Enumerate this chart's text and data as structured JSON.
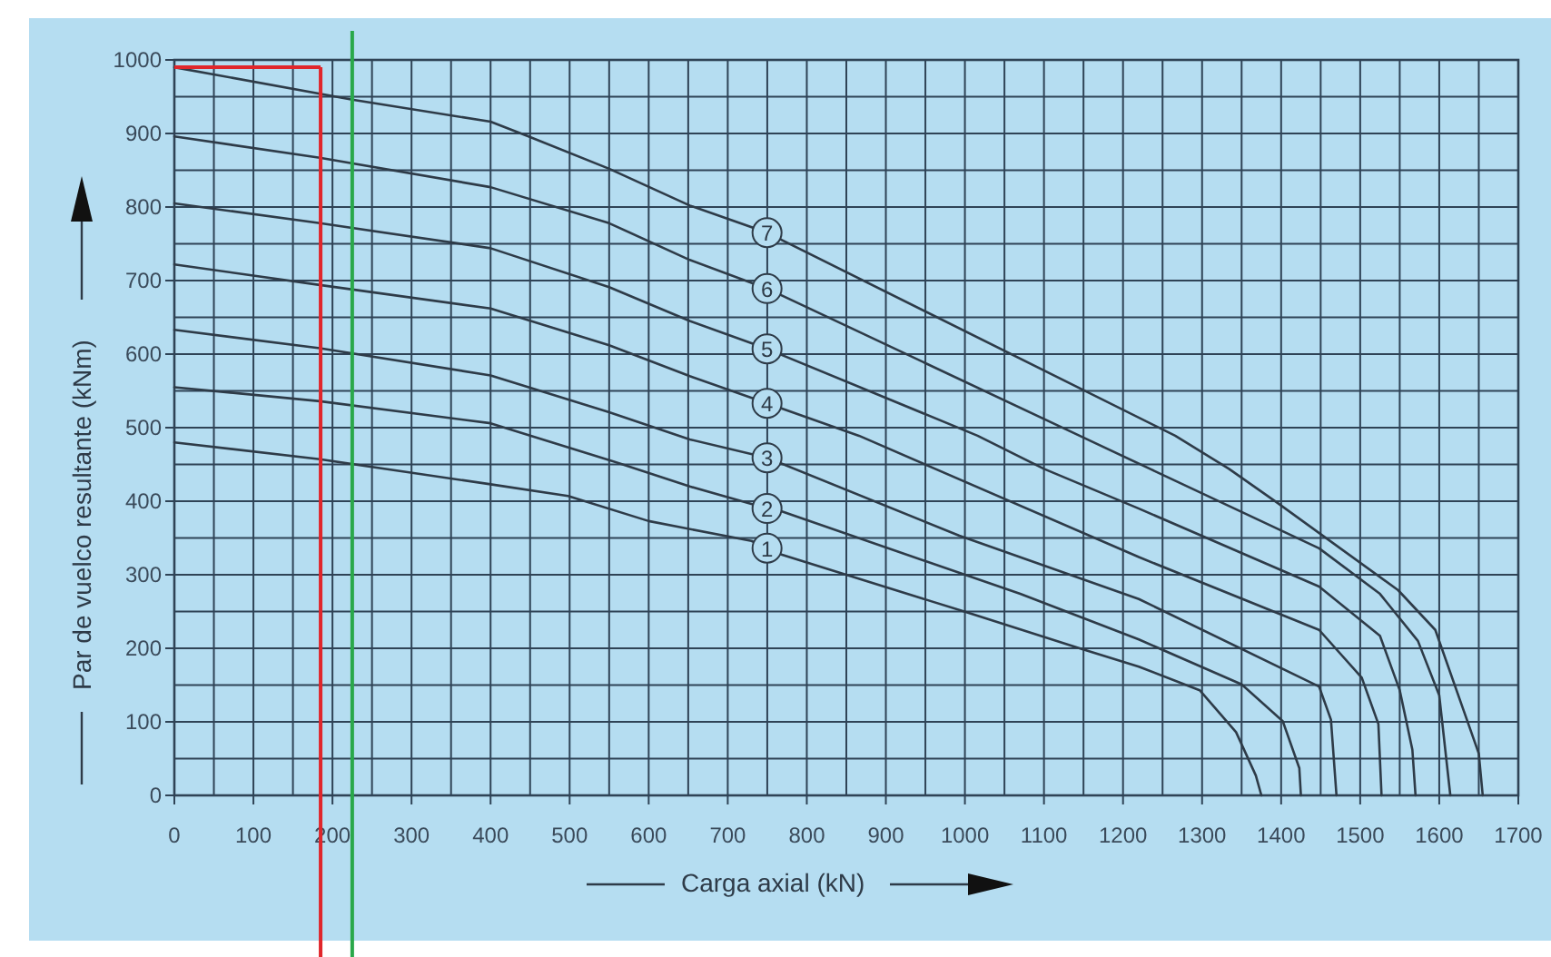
{
  "chart_data": {
    "type": "line",
    "xlabel": "Carga axial (kN)",
    "ylabel": "Par de vuelco resultante (kNm)",
    "xlim": [
      0,
      1700
    ],
    "ylim": [
      0,
      1000
    ],
    "xticks": [
      0,
      {
        "value": 50,
        "label": null
      },
      100,
      {
        "value": 150,
        "label": null
      },
      200,
      {
        "value": 250,
        "label": null
      },
      300,
      {
        "value": 350,
        "label": null
      },
      400,
      {
        "value": 450,
        "label": null
      },
      500,
      {
        "value": 550,
        "label": null
      },
      600,
      {
        "value": 650,
        "label": null
      },
      700,
      {
        "value": 750,
        "label": null
      },
      800,
      {
        "value": 850,
        "label": null
      },
      900,
      {
        "value": 950,
        "label": null
      },
      1000,
      {
        "value": 1050,
        "label": null
      },
      1100,
      {
        "value": 1150,
        "label": null
      },
      1200,
      {
        "value": 1250,
        "label": null
      },
      1300,
      {
        "value": 1350,
        "label": null
      },
      1400,
      {
        "value": 1450,
        "label": null
      },
      1500,
      {
        "value": 1550,
        "label": null
      },
      1600,
      {
        "value": 1650,
        "label": null
      },
      {
        "value": 1700,
        "label": "1700"
      }
    ],
    "yticks": [
      0,
      {
        "value": 50,
        "label": null
      },
      100,
      {
        "value": 150,
        "label": null
      },
      200,
      {
        "value": 250,
        "label": null
      },
      300,
      {
        "value": 350,
        "label": null
      },
      400,
      {
        "value": 450,
        "label": null
      },
      500,
      {
        "value": 550,
        "label": null
      },
      600,
      {
        "value": 650,
        "label": null
      },
      700,
      {
        "value": 750,
        "label": null
      },
      800,
      {
        "value": 850,
        "label": null
      },
      900,
      {
        "value": 950,
        "label": null
      },
      1000
    ],
    "grid": true,
    "marker": "none",
    "line_style": "solid",
    "series": [
      {
        "name": "1",
        "color": "#2e3b48",
        "x": [
          0,
          184,
          400,
          498,
          600,
          730,
          766,
          1002,
          1145,
          1220,
          1297,
          1343,
          1368,
          1375
        ],
        "values": [
          480,
          457,
          423,
          407,
          373,
          346,
          328,
          249,
          200,
          175,
          143,
          86,
          27,
          0
        ]
      },
      {
        "name": "2",
        "color": "#2e3b48",
        "x": [
          0,
          184,
          400,
          550,
          652,
          750,
          766,
          1070,
          1220,
          1350,
          1402,
          1423,
          1425
        ],
        "values": [
          555,
          536,
          506,
          456,
          420,
          390,
          387,
          274,
          212,
          151,
          101,
          37,
          0
        ]
      },
      {
        "name": "3",
        "color": "#2e3b48",
        "x": [
          0,
          184,
          400,
          550,
          652,
          750,
          993,
          1220,
          1448,
          1463,
          1470
        ],
        "values": [
          633,
          608,
          571,
          521,
          484,
          459,
          353,
          267,
          148,
          103,
          0
        ]
      },
      {
        "name": "4",
        "color": "#2e3b48",
        "x": [
          0,
          184,
          400,
          550,
          652,
          750,
          866,
          1220,
          1448,
          1502,
          1523,
          1527
        ],
        "values": [
          722,
          694,
          662,
          612,
          570,
          533,
          489,
          324,
          225,
          160,
          97,
          0
        ]
      },
      {
        "name": "5",
        "color": "#2e3b48",
        "x": [
          0,
          184,
          400,
          550,
          652,
          750,
          1016,
          1100,
          1220,
          1448,
          1525,
          1550,
          1566,
          1570
        ],
        "values": [
          805,
          778,
          744,
          691,
          645,
          607,
          489,
          444,
          390,
          284,
          217,
          143,
          62,
          0
        ]
      },
      {
        "name": "6",
        "color": "#2e3b48",
        "x": [
          0,
          184,
          400,
          550,
          652,
          750,
          1145,
          1236,
          1448,
          1525,
          1573,
          1600,
          1614
        ],
        "values": [
          896,
          867,
          827,
          778,
          728,
          689,
          489,
          443,
          336,
          274,
          210,
          136,
          0
        ]
      },
      {
        "name": "7",
        "color": "#2e3b48",
        "x": [
          0,
          225,
          400,
          448,
          550,
          652,
          750,
          1266,
          1334,
          1395,
          1548,
          1595,
          1630,
          1650,
          1655
        ],
        "values": [
          990,
          946,
          916,
          896,
          852,
          802,
          765,
          489,
          444,
          398,
          279,
          225,
          118,
          57,
          0
        ]
      }
    ],
    "ref_lines": [
      {
        "axis": "x",
        "value": 185,
        "color": "#e0262b"
      },
      {
        "axis": "y",
        "value": 990,
        "color": "#e0262b"
      },
      {
        "axis": "x",
        "value": 225,
        "color": "#2aa84a"
      }
    ]
  }
}
